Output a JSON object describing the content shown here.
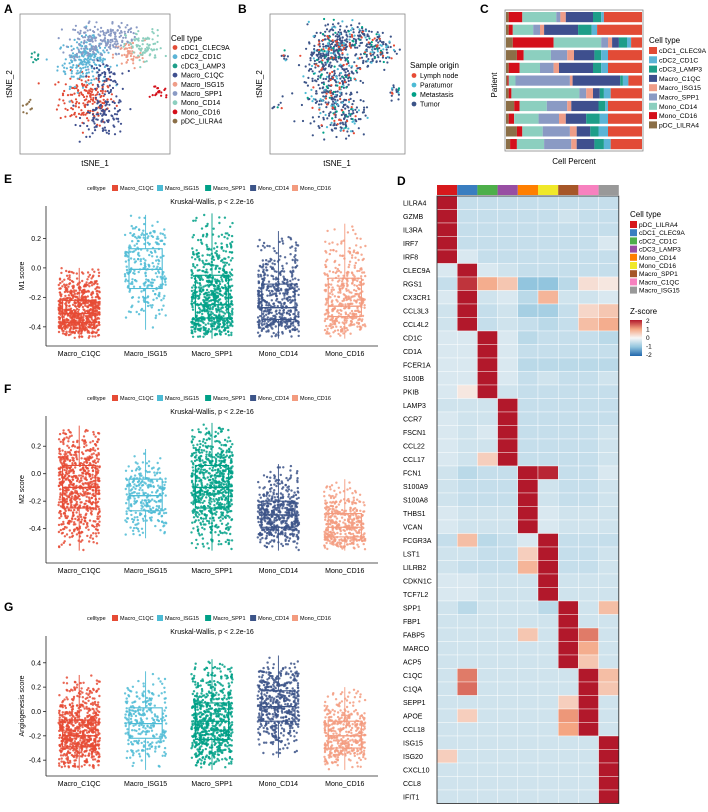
{
  "colors": {
    "pDC_LILRA4": "#8B6F47",
    "cDC1_CLEC9A": "#E24B36",
    "cDC2_CD1C": "#5BB4D6",
    "cDC3_LAMP3": "#1E9E89",
    "Macro_C1QC": "#3E4F8E",
    "Macro_ISG15": "#EF9D88",
    "Macro_SPP1": "#8A9AC4",
    "Mono_CD14": "#8CCFBF",
    "Mono_CD16": "#D40F1A",
    "Lymph node": "#E64B35",
    "Paratumor": "#4DBBD5",
    "Metastasis": "#00A087",
    "Tumor": "#3C5488",
    "hm_pDC_LILRA4": "#D7191C",
    "hm_cDC1_CLEC9A": "#3A7EC0",
    "hm_cDC2_CD1C": "#4DAF4A",
    "hm_cDC3_LAMP3": "#984EA3",
    "hm_Mono_CD14": "#FF7F00",
    "hm_Mono_CD16": "#F0E829",
    "hm_Macro_SPP1": "#A65628",
    "hm_Macro_C1QC": "#F781BF",
    "hm_Macro_ISG15": "#999999"
  },
  "panelA": {
    "label": "A",
    "xlabel": "tSNE_1",
    "ylabel": "tSNE_2",
    "legend_title": "Cell type",
    "legend": [
      "cDC1_CLEC9A",
      "cDC2_CD1C",
      "cDC3_LAMP3",
      "Macro_C1QC",
      "Macro_ISG15",
      "Macro_SPP1",
      "Mono_CD14",
      "Mono_CD16",
      "pDC_LILRA4"
    ]
  },
  "panelB": {
    "label": "B",
    "xlabel": "tSNE_1",
    "ylabel": "tSNE_2",
    "legend_title": "Sample origin",
    "legend": [
      "Lymph node",
      "Paratumor",
      "Metastasis",
      "Tumor"
    ]
  },
  "panelC": {
    "label": "C",
    "xlabel": "Cell Percent",
    "ylabel": "Patient",
    "legend_title": "Cell type",
    "legend": [
      "cDC1_CLEC9A",
      "cDC2_CD1C",
      "cDC3_LAMP3",
      "Macro_C1QC",
      "Macro_ISG15",
      "Macro_SPP1",
      "Mono_CD14",
      "Mono_CD16",
      "pDC_LILRA4"
    ]
  },
  "panelD": {
    "label": "D",
    "legend_title": "Cell type",
    "legend": [
      "pDC_LILRA4",
      "cDC1_CLEC9A",
      "cDC2_CD1C",
      "cDC3_LAMP3",
      "Mono_CD14",
      "Mono_CD16",
      "Macro_SPP1",
      "Macro_C1QC",
      "Macro_ISG15"
    ],
    "zscore_title": "Z-score",
    "zscore_ticks": [
      "2",
      "1",
      "0",
      "-1",
      "-2"
    ]
  },
  "panelE": {
    "label": "E"
  },
  "panelF": {
    "label": "F"
  },
  "panelG": {
    "label": "G"
  },
  "chart_data": [
    {
      "type": "scatter",
      "panel": "A",
      "title": "",
      "xlabel": "tSNE_1",
      "ylabel": "tSNE_2",
      "series": [
        {
          "name": "cDC1_CLEC9A",
          "clusters": [
            [
              -5,
              -10,
              9
            ]
          ]
        },
        {
          "name": "cDC2_CD1C",
          "clusters": [
            [
              -8,
              15,
              8
            ],
            [
              -3,
              20,
              6
            ]
          ]
        },
        {
          "name": "cDC3_LAMP3",
          "clusters": [
            [
              -38,
              18,
              2
            ]
          ]
        },
        {
          "name": "Macro_C1QC",
          "clusters": [
            [
              6,
              -22,
              7
            ],
            [
              6,
              5,
              5
            ]
          ]
        },
        {
          "name": "Macro_ISG15",
          "clusters": [
            [
              22,
              20,
              5
            ]
          ]
        },
        {
          "name": "Macro_SPP1",
          "clusters": [
            [
              -3,
              30,
              7
            ],
            [
              8,
              30,
              5
            ],
            [
              18,
              35,
              4
            ]
          ]
        },
        {
          "name": "Mono_CD14",
          "clusters": [
            [
              32,
              25,
              6
            ]
          ]
        },
        {
          "name": "Mono_CD16",
          "clusters": [
            [
              42,
              -5,
              3
            ]
          ]
        },
        {
          "name": "pDC_LILRA4",
          "clusters": [
            [
              -45,
              -15,
              2
            ]
          ]
        }
      ]
    },
    {
      "type": "scatter",
      "panel": "B",
      "title": "",
      "xlabel": "tSNE_1",
      "ylabel": "tSNE_2",
      "series": [
        {
          "name": "Lymph node"
        },
        {
          "name": "Paratumor"
        },
        {
          "name": "Metastasis"
        },
        {
          "name": "Tumor"
        }
      ]
    },
    {
      "type": "bar",
      "panel": "C",
      "orientation": "horizontal-stacked",
      "xlabel": "Cell Percent",
      "ylabel": "Patient",
      "series_order": [
        "pDC_LILRA4",
        "Mono_CD16",
        "Mono_CD14",
        "Macro_SPP1",
        "Macro_ISG15",
        "Macro_C1QC",
        "cDC3_LAMP3",
        "cDC2_CD1C",
        "cDC1_CLEC9A"
      ],
      "patients": [
        [
          0.02,
          0.1,
          0.25,
          0.03,
          0.04,
          0.2,
          0.06,
          0.02,
          0.28
        ],
        [
          0.02,
          0.03,
          0.15,
          0.05,
          0.03,
          0.25,
          0.1,
          0.04,
          0.33
        ],
        [
          0.05,
          0.3,
          0.35,
          0.05,
          0.03,
          0.05,
          0.06,
          0.03,
          0.08
        ],
        [
          0.08,
          0.05,
          0.2,
          0.12,
          0.05,
          0.15,
          0.05,
          0.05,
          0.25
        ],
        [
          0.02,
          0.08,
          0.15,
          0.1,
          0.04,
          0.25,
          0.06,
          0.05,
          0.25
        ],
        [
          0.01,
          0.01,
          0.05,
          0.4,
          0.02,
          0.35,
          0.02,
          0.04,
          0.1
        ],
        [
          0.02,
          0.02,
          0.5,
          0.05,
          0.05,
          0.05,
          0.03,
          0.05,
          0.23
        ],
        [
          0.06,
          0.04,
          0.2,
          0.15,
          0.03,
          0.2,
          0.05,
          0.02,
          0.25
        ],
        [
          0.02,
          0.04,
          0.18,
          0.15,
          0.05,
          0.15,
          0.1,
          0.06,
          0.25
        ],
        [
          0.08,
          0.04,
          0.15,
          0.2,
          0.05,
          0.1,
          0.06,
          0.07,
          0.25
        ],
        [
          0.03,
          0.05,
          0.2,
          0.2,
          0.04,
          0.13,
          0.07,
          0.05,
          0.23
        ]
      ]
    },
    {
      "type": "scatter",
      "panel": "E",
      "subtype": "box+jitter",
      "legend_title": "celltype",
      "test": "Kruskal-Wallis, p < 2.2e-16",
      "xlabel": "",
      "ylabel": "M1 score",
      "categories": [
        "Macro_C1QC",
        "Macro_ISG15",
        "Macro_SPP1",
        "Mono_CD14",
        "Mono_CD16"
      ],
      "yticks": [
        -0.4,
        -0.2,
        0.0,
        0.2
      ],
      "ylim": [
        -0.53,
        0.42
      ],
      "box": [
        {
          "q1": -0.37,
          "median": -0.31,
          "q3": -0.22,
          "lo": -0.48,
          "hi": 0.0,
          "n": 900
        },
        {
          "q1": -0.14,
          "median": -0.01,
          "q3": 0.13,
          "lo": -0.42,
          "hi": 0.36,
          "n": 260
        },
        {
          "q1": -0.34,
          "median": -0.25,
          "q3": -0.05,
          "lo": -0.48,
          "hi": 0.37,
          "n": 900
        },
        {
          "q1": -0.35,
          "median": -0.27,
          "q3": -0.11,
          "lo": -0.48,
          "hi": 0.25,
          "n": 500
        },
        {
          "q1": -0.33,
          "median": -0.26,
          "q3": -0.07,
          "lo": -0.48,
          "hi": 0.3,
          "n": 400
        }
      ]
    },
    {
      "type": "scatter",
      "panel": "F",
      "subtype": "box+jitter",
      "legend_title": "celltype",
      "test": "Kruskal-Wallis, p < 2.2e-16",
      "xlabel": "",
      "ylabel": "M2 score",
      "categories": [
        "Macro_C1QC",
        "Macro_ISG15",
        "Macro_SPP1",
        "Mono_CD14",
        "Mono_CD16"
      ],
      "yticks": [
        -0.4,
        -0.2,
        0.0,
        0.2
      ],
      "ylim": [
        -0.65,
        0.42
      ],
      "box": [
        {
          "q1": -0.25,
          "median": -0.1,
          "q3": 0.06,
          "lo": -0.56,
          "hi": 0.35,
          "n": 900
        },
        {
          "q1": -0.27,
          "median": -0.16,
          "q3": -0.04,
          "lo": -0.47,
          "hi": 0.18,
          "n": 260
        },
        {
          "q1": -0.25,
          "median": -0.1,
          "q3": 0.06,
          "lo": -0.56,
          "hi": 0.37,
          "n": 900
        },
        {
          "q1": -0.39,
          "median": -0.3,
          "q3": -0.2,
          "lo": -0.56,
          "hi": 0.07,
          "n": 500
        },
        {
          "q1": -0.46,
          "median": -0.39,
          "q3": -0.29,
          "lo": -0.56,
          "hi": -0.04,
          "n": 400
        }
      ]
    },
    {
      "type": "scatter",
      "panel": "G",
      "subtype": "box+jitter",
      "legend_title": "celltype",
      "test": "Kruskal-Wallis, p < 2.2e-16",
      "xlabel": "",
      "ylabel": "Angiogenesis score",
      "categories": [
        "Macro_C1QC",
        "Macro_ISG15",
        "Macro_SPP1",
        "Mono_CD14",
        "Mono_CD16"
      ],
      "yticks": [
        -0.4,
        -0.2,
        0.0,
        0.2,
        0.4
      ],
      "ylim": [
        -0.53,
        0.62
      ],
      "box": [
        {
          "q1": -0.29,
          "median": -0.2,
          "q3": -0.07,
          "lo": -0.48,
          "hi": 0.3,
          "n": 900
        },
        {
          "q1": -0.22,
          "median": -0.1,
          "q3": 0.03,
          "lo": -0.48,
          "hi": 0.33,
          "n": 260
        },
        {
          "q1": -0.23,
          "median": -0.08,
          "q3": 0.07,
          "lo": -0.48,
          "hi": 0.43,
          "n": 900
        },
        {
          "q1": -0.08,
          "median": 0.04,
          "q3": 0.17,
          "lo": -0.38,
          "hi": 0.46,
          "n": 500
        },
        {
          "q1": -0.3,
          "median": -0.2,
          "q3": -0.08,
          "lo": -0.48,
          "hi": 0.2,
          "n": 400
        }
      ]
    },
    {
      "type": "heatmap",
      "panel": "D",
      "title": "",
      "columns": [
        "pDC_LILRA4",
        "cDC1_CLEC9A",
        "cDC2_CD1C",
        "cDC3_LAMP3",
        "Mono_CD14",
        "Mono_CD16",
        "Macro_SPP1",
        "Macro_C1QC",
        "Macro_ISG15"
      ],
      "genes": [
        "LILRA4",
        "GZMB",
        "IL3RA",
        "IRF7",
        "IRF8",
        "CLEC9A",
        "RGS1",
        "CX3CR1",
        "CCL3L3",
        "CCL4L2",
        "CD1C",
        "CD1A",
        "FCER1A",
        "S100B",
        "PKIB",
        "LAMP3",
        "CCR7",
        "FSCN1",
        "CCL22",
        "CCL17",
        "FCN1",
        "S100A9",
        "S100A8",
        "THBS1",
        "VCAN",
        "FCGR3A",
        "LST1",
        "LILRB2",
        "CDKN1C",
        "TCF7L2",
        "SPP1",
        "FBP1",
        "FABP5",
        "MARCO",
        "ACP5",
        "C1QC",
        "C1QA",
        "SEPP1",
        "APOE",
        "CCL18",
        "ISG15",
        "ISG20",
        "CXCL10",
        "CCL8",
        "IFIT1"
      ],
      "zmin": -2,
      "zmax": 2,
      "values": [
        [
          2.6,
          -0.5,
          -0.5,
          -0.5,
          -0.5,
          -0.5,
          -0.5,
          -0.5,
          -0.5
        ],
        [
          2.6,
          -0.5,
          -0.5,
          -0.5,
          -0.5,
          -0.5,
          -0.4,
          -0.5,
          -0.5
        ],
        [
          2.6,
          -0.5,
          -0.5,
          -0.5,
          -0.5,
          -0.5,
          -0.5,
          -0.5,
          -0.5
        ],
        [
          2.6,
          -0.5,
          -0.5,
          -0.5,
          -0.5,
          -0.5,
          -0.5,
          -0.5,
          -0.3
        ],
        [
          2.6,
          -0.3,
          -0.5,
          -0.5,
          -0.5,
          -0.5,
          -0.5,
          -0.5,
          -0.5
        ],
        [
          -0.3,
          2.6,
          -0.3,
          -0.4,
          -0.5,
          -0.5,
          -0.5,
          -0.5,
          -0.5
        ],
        [
          -0.5,
          1.8,
          0.9,
          0.6,
          -1.0,
          -1.0,
          -0.6,
          0.3,
          0.2
        ],
        [
          -0.3,
          2.4,
          -0.4,
          -0.3,
          -0.6,
          0.8,
          -0.4,
          -0.4,
          -0.3
        ],
        [
          -0.4,
          2.4,
          -0.5,
          -0.4,
          -0.8,
          -0.8,
          -0.5,
          0.4,
          0.6
        ],
        [
          -0.4,
          2.4,
          -0.5,
          -0.4,
          -0.5,
          -0.6,
          -0.5,
          0.7,
          0.9
        ],
        [
          -0.3,
          -0.3,
          2.6,
          -0.3,
          -0.6,
          -0.5,
          -0.5,
          -0.5,
          -0.6
        ],
        [
          -0.3,
          -0.3,
          2.6,
          -0.3,
          -0.5,
          -0.5,
          -0.5,
          -0.5,
          -0.5
        ],
        [
          -0.3,
          -0.3,
          2.5,
          -0.3,
          -0.6,
          -0.6,
          -0.6,
          -0.6,
          -0.6
        ],
        [
          -0.3,
          -0.3,
          2.4,
          -0.3,
          -0.5,
          -0.4,
          -0.5,
          -0.5,
          -0.4
        ],
        [
          -0.3,
          0.2,
          2.4,
          -0.4,
          -0.5,
          -0.5,
          -0.5,
          -0.5,
          -0.5
        ],
        [
          -0.4,
          -0.4,
          -0.4,
          2.6,
          -0.5,
          -0.5,
          -0.5,
          -0.5,
          -0.5
        ],
        [
          -0.3,
          -0.4,
          -0.4,
          2.6,
          -0.5,
          -0.5,
          -0.5,
          -0.5,
          -0.5
        ],
        [
          -0.3,
          -0.4,
          -0.3,
          2.6,
          -0.5,
          -0.5,
          -0.5,
          -0.5,
          -0.4
        ],
        [
          -0.3,
          -0.4,
          -0.4,
          2.6,
          -0.5,
          -0.5,
          -0.5,
          -0.5,
          -0.4
        ],
        [
          -0.3,
          -0.4,
          0.5,
          2.4,
          -0.5,
          -0.5,
          -0.5,
          -0.5,
          -0.4
        ],
        [
          -0.4,
          -0.6,
          -0.5,
          -0.5,
          2.5,
          1.9,
          -0.5,
          -0.5,
          -0.3
        ],
        [
          -0.4,
          -0.5,
          -0.5,
          -0.5,
          2.6,
          -0.4,
          -0.5,
          -0.5,
          -0.4
        ],
        [
          -0.4,
          -0.5,
          -0.5,
          -0.5,
          2.6,
          -0.4,
          -0.5,
          -0.5,
          -0.4
        ],
        [
          -0.3,
          -0.4,
          -0.4,
          -0.4,
          2.6,
          -0.3,
          -0.4,
          -0.4,
          -0.4
        ],
        [
          -0.3,
          -0.4,
          -0.4,
          -0.4,
          2.6,
          -0.3,
          -0.4,
          -0.4,
          -0.4
        ],
        [
          -0.5,
          0.7,
          -0.6,
          -0.5,
          -0.3,
          2.6,
          -0.5,
          -0.5,
          -0.5
        ],
        [
          -0.4,
          -0.4,
          -0.5,
          -0.5,
          0.5,
          2.5,
          -0.5,
          -0.5,
          -0.4
        ],
        [
          -0.4,
          -0.5,
          -0.5,
          -0.5,
          0.8,
          2.4,
          -0.5,
          -0.5,
          -0.4
        ],
        [
          -0.3,
          -0.3,
          -0.4,
          -0.4,
          -0.4,
          2.6,
          -0.4,
          -0.4,
          -0.4
        ],
        [
          -0.3,
          -0.3,
          -0.4,
          -0.4,
          -0.4,
          2.6,
          -0.4,
          -0.4,
          -0.4
        ],
        [
          -0.4,
          -0.6,
          -0.4,
          -0.4,
          -0.4,
          -0.6,
          2.6,
          -0.4,
          0.7
        ],
        [
          -0.4,
          -0.4,
          -0.4,
          -0.4,
          -0.4,
          -0.4,
          2.6,
          -0.4,
          -0.4
        ],
        [
          -0.4,
          -0.4,
          -0.4,
          -0.4,
          0.6,
          -0.4,
          2.4,
          1.3,
          -0.4
        ],
        [
          -0.4,
          -0.4,
          -0.4,
          -0.4,
          -0.4,
          -0.4,
          2.4,
          0.9,
          -0.4
        ],
        [
          -0.4,
          -0.4,
          -0.4,
          -0.4,
          -0.4,
          -0.4,
          2.5,
          0.6,
          -0.4
        ],
        [
          -0.4,
          1.3,
          -0.4,
          -0.4,
          -0.4,
          -0.4,
          -0.4,
          2.5,
          0.7
        ],
        [
          -0.4,
          1.4,
          -0.4,
          -0.4,
          -0.4,
          -0.4,
          -0.4,
          2.5,
          0.6
        ],
        [
          -0.4,
          -0.4,
          -0.4,
          -0.4,
          -0.4,
          -0.4,
          0.5,
          2.4,
          -0.4
        ],
        [
          -0.4,
          0.5,
          -0.4,
          -0.4,
          -0.4,
          -0.4,
          1.1,
          2.3,
          -0.4
        ],
        [
          -0.4,
          -0.4,
          -0.4,
          -0.4,
          -0.4,
          -0.4,
          1.0,
          2.3,
          -0.4
        ],
        [
          -0.4,
          -0.4,
          -0.4,
          -0.4,
          -0.4,
          -0.4,
          -0.4,
          -0.4,
          2.6
        ],
        [
          0.5,
          -0.4,
          -0.4,
          -0.4,
          -0.4,
          -0.4,
          -0.4,
          -0.4,
          2.6
        ],
        [
          -0.4,
          -0.4,
          -0.4,
          -0.4,
          -0.4,
          -0.4,
          -0.4,
          -0.4,
          2.6
        ],
        [
          -0.4,
          -0.4,
          -0.4,
          -0.4,
          -0.4,
          -0.4,
          -0.4,
          -0.4,
          2.6
        ],
        [
          -0.4,
          -0.4,
          -0.4,
          -0.4,
          -0.4,
          -0.4,
          -0.4,
          -0.4,
          2.6
        ]
      ]
    }
  ]
}
